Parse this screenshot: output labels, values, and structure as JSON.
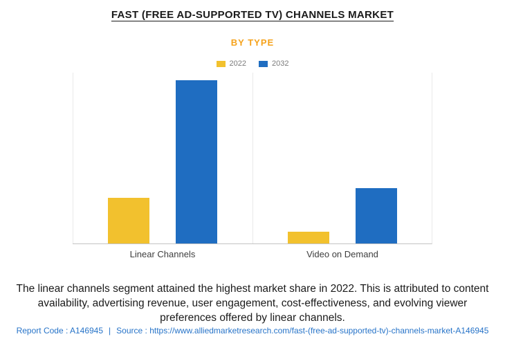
{
  "header": {
    "title": "FAST (FREE AD-SUPPORTED TV) CHANNELS MARKET",
    "subtitle": "BY TYPE"
  },
  "colors": {
    "accent_orange": "#F5A21B",
    "link_blue": "#2673C8",
    "series_2022_yellow": "#F2C12E",
    "series_2032_blue": "#1F6DC1"
  },
  "chart_data": {
    "type": "bar",
    "title": "FAST (FREE AD-SUPPORTED TV) CHANNELS MARKET — BY TYPE",
    "categories": [
      "Linear Channels",
      "Video on Demand"
    ],
    "series": [
      {
        "name": "2022",
        "color": "#F2C12E",
        "values": [
          28,
          7
        ]
      },
      {
        "name": "2032",
        "color": "#1F6DC1",
        "values": [
          100,
          34
        ]
      }
    ],
    "xlabel": "",
    "ylabel": "",
    "ylim": [
      0,
      105
    ],
    "grid": false,
    "legend_position": "top-center",
    "value_axis_visible": false
  },
  "description": "The linear channels segment attained the highest market share in 2022. This is attributed to content availability, advertising revenue, user engagement, cost-effectiveness, and evolving viewer preferences offered by linear channels.",
  "footer": {
    "report_code": "Report Code : A146945",
    "separator": "|",
    "source_prefix": "Source :",
    "source_url": "https://www.alliedmarketresearch.com/fast-(free-ad-supported-tv)-channels-market-A146945"
  }
}
